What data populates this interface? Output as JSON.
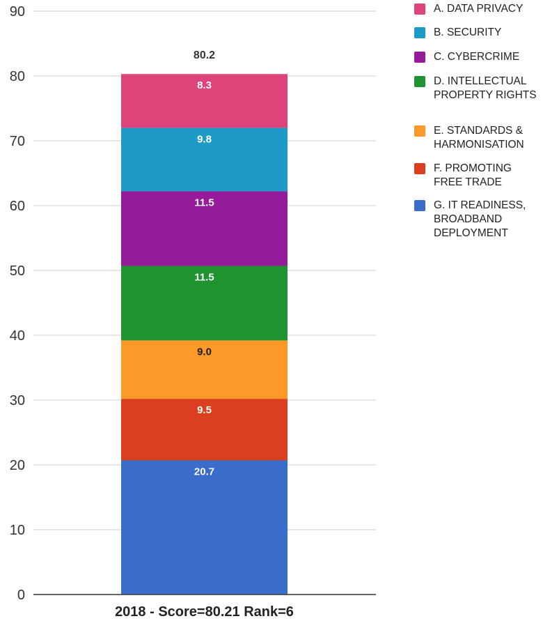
{
  "chart_data": {
    "type": "bar",
    "stacked": true,
    "categories": [
      "2018 - Score=80.21 Rank=6"
    ],
    "series": [
      {
        "name": "G. IT READINESS, BROADBAND DEPLOYMENT",
        "values": [
          20.7
        ],
        "color": "#3a6cc9",
        "label": "20.7",
        "label_color": "#ffffff"
      },
      {
        "name": "F. PROMOTING FREE TRADE",
        "values": [
          9.5
        ],
        "color": "#dc3f20",
        "label": "9.5",
        "label_color": "#ffffff"
      },
      {
        "name": "E. STANDARDS & HARMONISATION",
        "values": [
          9.0
        ],
        "color": "#fb9a29",
        "label": "9.0",
        "label_color": "#1a1a1a"
      },
      {
        "name": "D. INTELLECTUAL PROPERTY RIGHTS",
        "values": [
          11.5
        ],
        "color": "#1f9330",
        "label": "11.5",
        "label_color": "#ffffff"
      },
      {
        "name": "C. CYBERCRIME",
        "values": [
          11.5
        ],
        "color": "#951b9b",
        "label": "11.5",
        "label_color": "#ffffff"
      },
      {
        "name": "B. SECURITY",
        "values": [
          9.8
        ],
        "color": "#1d9ac6",
        "label": "9.8",
        "label_color": "#ffffff"
      },
      {
        "name": "A. DATA PRIVACY",
        "values": [
          8.3
        ],
        "color": "#dd4479",
        "label": "8.3",
        "label_color": "#ffffff"
      }
    ],
    "total_label": "80.2",
    "ylim": [
      0,
      90
    ],
    "yticks": [
      "0",
      "10",
      "20",
      "30",
      "40",
      "50",
      "60",
      "70",
      "80",
      "90"
    ],
    "grid": true,
    "legend_position": "right",
    "legend_order": [
      "A. DATA PRIVACY",
      "B. SECURITY",
      "C. CYBERCRIME",
      "D. INTELLECTUAL PROPERTY RIGHTS",
      "E. STANDARDS & HARMONISATION",
      "F. PROMOTING FREE TRADE",
      "G. IT READINESS, BROADBAND DEPLOYMENT"
    ],
    "title": "",
    "xlabel": "",
    "ylabel": ""
  }
}
